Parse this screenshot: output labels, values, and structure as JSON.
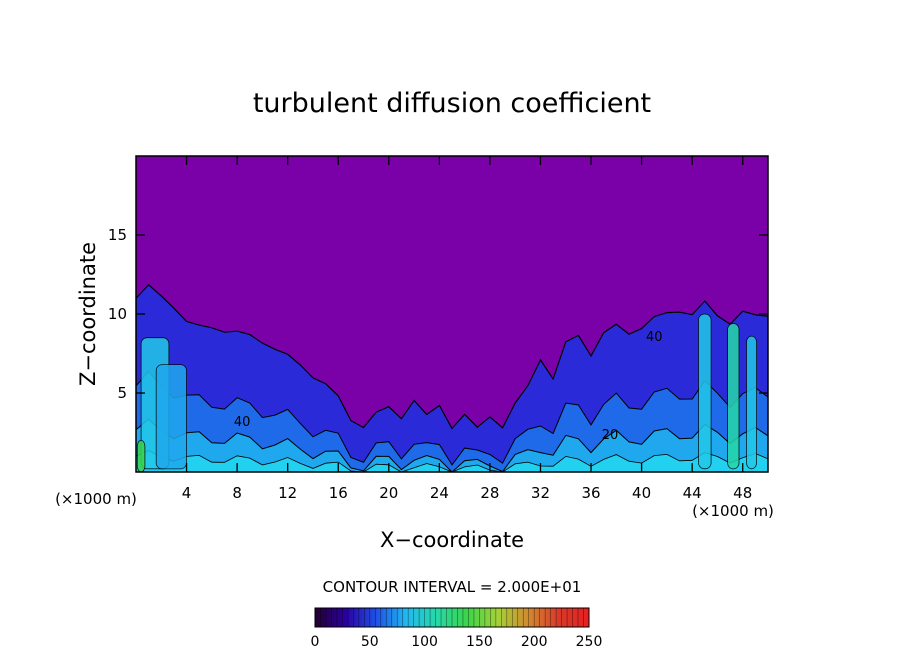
{
  "chart_data": {
    "type": "heatmap",
    "title": "turbulent diffusion coefficient",
    "xlabel": "X−coordinate",
    "ylabel": "Z−coordinate",
    "x_unit": "(×1000 m)",
    "z_unit": "(×1000 m)",
    "xlim": [
      0,
      50
    ],
    "ylim": [
      0,
      20
    ],
    "x_ticks": [
      4,
      8,
      12,
      16,
      20,
      24,
      28,
      32,
      36,
      40,
      44,
      48
    ],
    "y_ticks": [
      5,
      10,
      15
    ],
    "contour_interval_text": "CONTOUR INTERVAL = 2.000E+01",
    "contour_labels": [
      {
        "text": "40",
        "x": 8.4,
        "z": 2.9
      },
      {
        "text": "40",
        "x": 41.0,
        "z": 8.3
      },
      {
        "text": "20",
        "x": 37.5,
        "z": 2.1
      }
    ],
    "colorbar": {
      "min": 0,
      "max": 250,
      "ticks": [
        0,
        50,
        100,
        150,
        200,
        250
      ],
      "colors": [
        "#240030",
        "#2a00a0",
        "#1f4fe6",
        "#22b8f0",
        "#26d8a8",
        "#3cd44a",
        "#a4d238",
        "#d28a30",
        "#d83a2a",
        "#e62020"
      ]
    },
    "background_value_color": "#7a00a8",
    "profile_top_km": [
      [
        0,
        11.0
      ],
      [
        1,
        11.6
      ],
      [
        2,
        11.2
      ],
      [
        3,
        10.6
      ],
      [
        4,
        9.4
      ],
      [
        5,
        9.1
      ],
      [
        6,
        9.3
      ],
      [
        7,
        9.0
      ],
      [
        8,
        8.7
      ],
      [
        9,
        8.6
      ],
      [
        10,
        8.4
      ],
      [
        11,
        7.8
      ],
      [
        12,
        7.2
      ],
      [
        13,
        6.8
      ],
      [
        14,
        6.2
      ],
      [
        15,
        5.5
      ],
      [
        16,
        4.6
      ],
      [
        17,
        3.4
      ],
      [
        18,
        3.0
      ],
      [
        19,
        3.6
      ],
      [
        20,
        4.0
      ],
      [
        21,
        3.6
      ],
      [
        22,
        4.6
      ],
      [
        23,
        3.4
      ],
      [
        24,
        4.2
      ],
      [
        25,
        3.0
      ],
      [
        26,
        3.6
      ],
      [
        27,
        2.6
      ],
      [
        28,
        3.6
      ],
      [
        29,
        3.0
      ],
      [
        30,
        4.2
      ],
      [
        31,
        5.3
      ],
      [
        32,
        7.3
      ],
      [
        33,
        6.0
      ],
      [
        34,
        8.0
      ],
      [
        35,
        8.6
      ],
      [
        36,
        7.6
      ],
      [
        37,
        8.8
      ],
      [
        38,
        9.1
      ],
      [
        39,
        8.8
      ],
      [
        40,
        9.3
      ],
      [
        41,
        9.7
      ],
      [
        42,
        9.9
      ],
      [
        43,
        10.3
      ],
      [
        44,
        10.1
      ],
      [
        45,
        10.6
      ],
      [
        46,
        9.8
      ],
      [
        47,
        9.6
      ],
      [
        48,
        10.2
      ],
      [
        49,
        9.7
      ],
      [
        50,
        9.9
      ]
    ]
  }
}
